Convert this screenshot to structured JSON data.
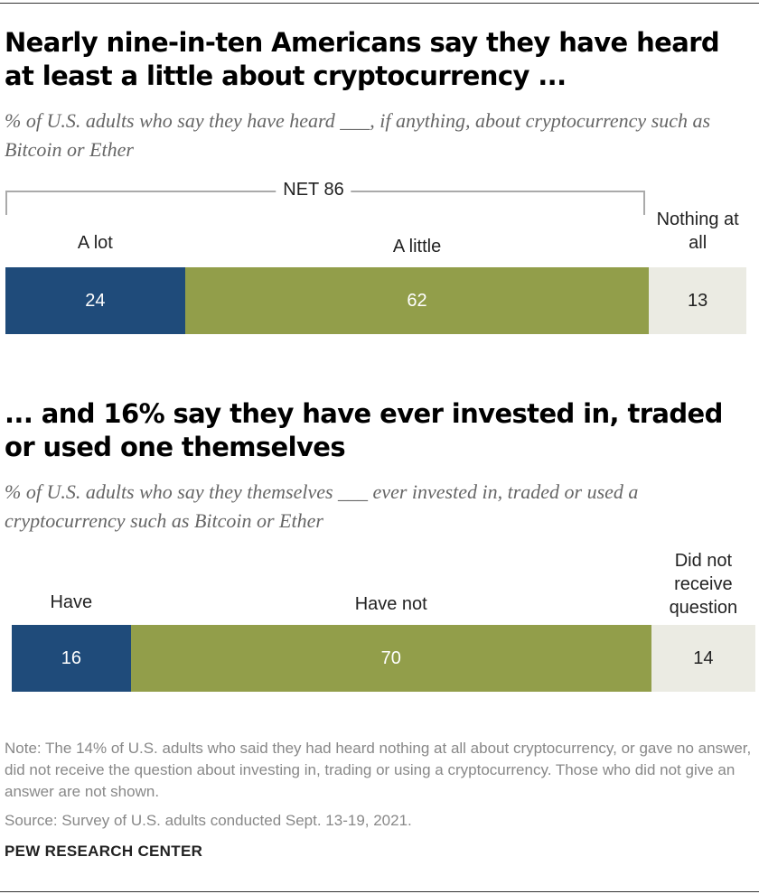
{
  "colors": {
    "a": "#1f4b7a",
    "b": "#929e4a",
    "c": "#ebebe3"
  },
  "chart_data": [
    {
      "type": "bar",
      "orientation": "horizontal-stacked",
      "title": "Nearly nine-in-ten Americans say they have heard at least a little about cryptocurrency ...",
      "subtitle": "% of U.S. adults who say they have heard ___, if anything, about cryptocurrency such as Bitcoin or Ether",
      "net_label": "NET 86",
      "series": [
        {
          "name": "A lot",
          "value": 24
        },
        {
          "name": "A little",
          "value": 62
        },
        {
          "name": "Nothing at all",
          "value": 13
        }
      ]
    },
    {
      "type": "bar",
      "orientation": "horizontal-stacked",
      "title": "... and 16% say they have ever invested in, traded or used one themselves",
      "subtitle": "% of U.S. adults who say they themselves ___ ever invested in, traded or used a cryptocurrency such as Bitcoin or Ether",
      "series": [
        {
          "name": "Have",
          "value": 16
        },
        {
          "name": "Have not",
          "value": 70
        },
        {
          "name": "Did not receive question",
          "value": 14
        }
      ]
    }
  ],
  "note": "Note: The 14% of U.S. adults who said they had heard nothing at all about cryptocurrency, or gave no answer, did not receive the question about investing in, trading or using a cryptocurrency. Those who did not give an answer are not shown.",
  "source": "Source: Survey of U.S. adults conducted Sept. 13-19, 2021.",
  "brand": "PEW RESEARCH CENTER"
}
